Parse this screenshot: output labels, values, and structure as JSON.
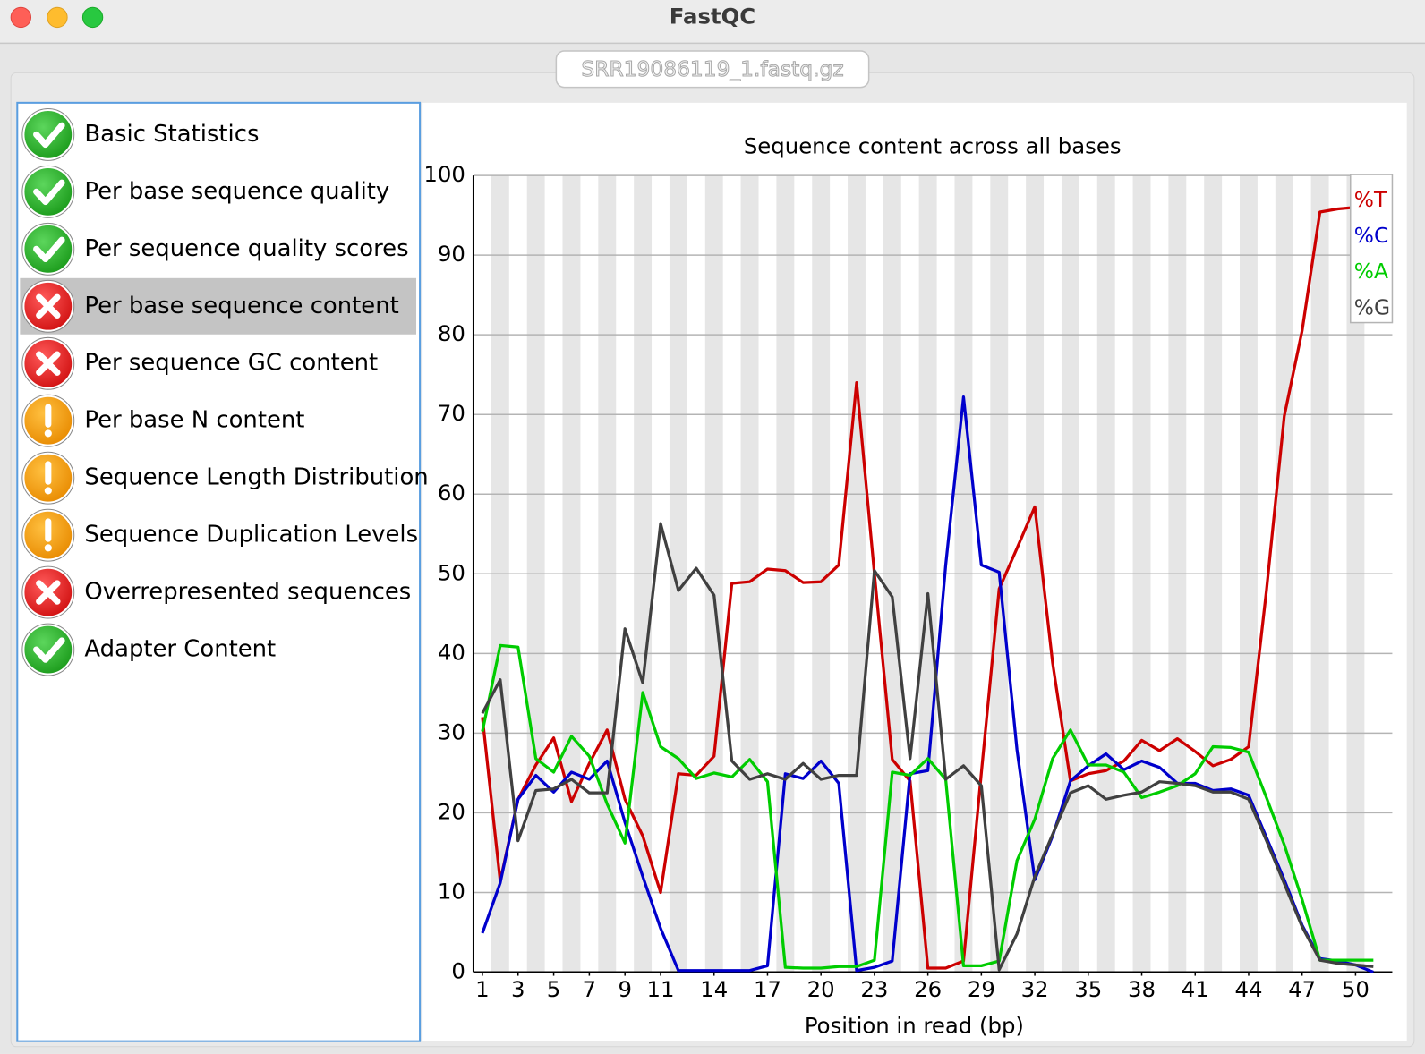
{
  "window": {
    "title": "FastQC",
    "tab": "SRR19086119_1.fastq.gz"
  },
  "selected_module": 3,
  "modules": [
    {
      "label": "Basic Statistics",
      "status": "pass"
    },
    {
      "label": "Per base sequence quality",
      "status": "pass"
    },
    {
      "label": "Per sequence quality scores",
      "status": "pass"
    },
    {
      "label": "Per base sequence content",
      "status": "fail"
    },
    {
      "label": "Per sequence GC content",
      "status": "fail"
    },
    {
      "label": "Per base N content",
      "status": "warn"
    },
    {
      "label": "Sequence Length Distribution",
      "status": "warn"
    },
    {
      "label": "Sequence Duplication Levels",
      "status": "warn"
    },
    {
      "label": "Overrepresented sequences",
      "status": "fail"
    },
    {
      "label": "Adapter Content",
      "status": "pass"
    }
  ],
  "chart_data": {
    "type": "line",
    "title": "Sequence content across all bases",
    "x_label": "Position in read (bp)",
    "x": [
      1,
      2,
      3,
      4,
      5,
      6,
      7,
      8,
      9,
      10,
      11,
      12,
      13,
      14,
      15,
      16,
      17,
      18,
      19,
      20,
      21,
      22,
      23,
      24,
      25,
      26,
      27,
      28,
      29,
      30,
      31,
      32,
      33,
      34,
      35,
      36,
      37,
      38,
      39,
      40,
      41,
      42,
      43,
      44,
      45,
      46,
      47,
      48,
      49,
      50,
      51
    ],
    "xlim": [
      0.5,
      51.5
    ],
    "xticks": [
      1,
      3,
      5,
      7,
      9,
      11,
      14,
      17,
      20,
      23,
      26,
      29,
      32,
      35,
      38,
      41,
      44,
      47,
      50
    ],
    "ylim": [
      0,
      100
    ],
    "yticks": [
      0,
      10,
      20,
      30,
      40,
      50,
      60,
      70,
      80,
      90,
      100
    ],
    "grid": true,
    "striped_columns": true,
    "legend": "upper right",
    "series": [
      {
        "name": "%T",
        "color": "#cc0000",
        "values": [
          32,
          11.4,
          21.7,
          26,
          29.4,
          21.4,
          26.2,
          30.4,
          21.7,
          17.1,
          10,
          24.9,
          24.7,
          27.1,
          48.8,
          49,
          50.6,
          50.4,
          48.9,
          49,
          51.1,
          74,
          50,
          26.7,
          24,
          0.5,
          0.5,
          1.4,
          25,
          48.1,
          53.2,
          58.4,
          38.8,
          24,
          24.9,
          25.3,
          26.5,
          29.1,
          27.8,
          29.3,
          27.7,
          25.9,
          26.7,
          28.3,
          47.9,
          69.8,
          80.5,
          95.4,
          95.8,
          96,
          96.3
        ]
      },
      {
        "name": "%C",
        "color": "#0000cc",
        "values": [
          4.9,
          11.2,
          21.7,
          24.7,
          22.6,
          25.1,
          24.2,
          26.5,
          18.8,
          12,
          5.5,
          0.2,
          0.2,
          0.2,
          0.2,
          0.2,
          0.8,
          24.9,
          24.3,
          26.5,
          23.7,
          0.2,
          0.6,
          1.4,
          24.9,
          25.3,
          51.1,
          72.2,
          51.1,
          50.2,
          27.9,
          11.6,
          17.1,
          24,
          25.9,
          27.4,
          25.4,
          26.5,
          25.7,
          23.7,
          23.7,
          22.8,
          23,
          22.2,
          16.9,
          11.6,
          5.9,
          1.7,
          1.4,
          0.9,
          0
        ]
      },
      {
        "name": "%A",
        "color": "#00cc00",
        "values": [
          30.2,
          41,
          40.8,
          26.8,
          25.1,
          29.6,
          27.1,
          21.1,
          16.2,
          35.1,
          28.3,
          26.8,
          24.3,
          25,
          24.5,
          26.7,
          23.9,
          0.6,
          0.5,
          0.5,
          0.7,
          0.7,
          1.5,
          25.1,
          24.7,
          26.8,
          24.2,
          0.8,
          0.8,
          1.4,
          14,
          19.2,
          26.8,
          30.4,
          26,
          26,
          25.1,
          21.9,
          22.6,
          23.4,
          24.9,
          28.3,
          28.2,
          27.6,
          21.9,
          16,
          9.1,
          1.5,
          1.5,
          1.5,
          1.5
        ]
      },
      {
        "name": "%G",
        "color": "#404040",
        "values": [
          32.5,
          36.7,
          16.5,
          22.8,
          23,
          24.2,
          22.5,
          22.5,
          43.1,
          36.3,
          56.3,
          47.9,
          50.7,
          47.3,
          26.5,
          24.2,
          24.9,
          24.2,
          26.2,
          24.2,
          24.7,
          24.7,
          50.4,
          47.1,
          26.8,
          47.5,
          24.2,
          25.9,
          23.4,
          0.3,
          4.8,
          12,
          17.3,
          22.5,
          23.4,
          21.7,
          22.2,
          22.6,
          23.9,
          23.7,
          23.4,
          22.6,
          22.6,
          21.7,
          16.5,
          11.1,
          5.7,
          1.5,
          1.1,
          0.9,
          0.7
        ]
      }
    ]
  }
}
